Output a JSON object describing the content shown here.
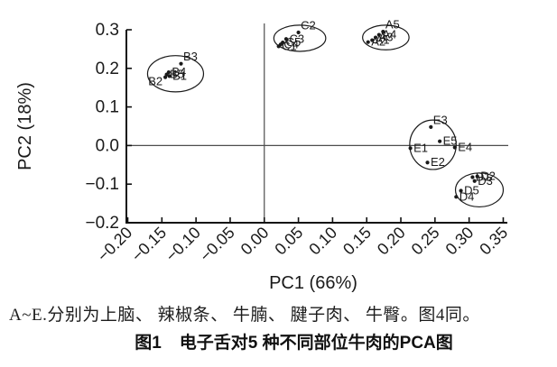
{
  "colors": {
    "ink": "#1a1a1a",
    "axis": "#111111",
    "zero_line": "#4d4d4d",
    "background": "#ffffff"
  },
  "chart_data": {
    "type": "scatter",
    "title": "",
    "xlabel": "PC1 (66%)",
    "ylabel": "PC2 (18%)",
    "xlim": [
      -0.202,
      0.356
    ],
    "ylim": [
      -0.2,
      0.3
    ],
    "grid": false,
    "zero_lines": true,
    "legend": "none",
    "x_ticks": [
      -0.2,
      -0.15,
      -0.1,
      -0.05,
      0.0,
      0.05,
      0.1,
      0.15,
      0.2,
      0.25,
      0.3,
      0.35
    ],
    "x_tick_labels": [
      "−0.20",
      "−0.15",
      "−0.10",
      "−0.05",
      "0.00",
      "0.05",
      "0.10",
      "0.15",
      "0.20",
      "0.25",
      "0.30",
      "0.35"
    ],
    "y_ticks": [
      0.3,
      0.2,
      0.1,
      0.0,
      -0.1,
      -0.2
    ],
    "y_tick_labels": [
      "0.3",
      "0.2",
      "0.1",
      "0.0",
      "−0.1",
      "−0.2"
    ],
    "series": [
      {
        "name": "A",
        "ellipse": {
          "cx": 0.178,
          "cy": 0.28,
          "rx": 0.034,
          "ry": 0.032
        },
        "points": [
          {
            "label": "A1",
            "x": 0.158,
            "y": 0.273,
            "lpos": "r"
          },
          {
            "label": "A2",
            "x": 0.152,
            "y": 0.268,
            "lpos": "r"
          },
          {
            "label": "A3",
            "x": 0.163,
            "y": 0.28,
            "lpos": "r"
          },
          {
            "label": "A4",
            "x": 0.168,
            "y": 0.287,
            "lpos": "r"
          },
          {
            "label": "A5",
            "x": 0.174,
            "y": 0.295,
            "lpos": "ra"
          }
        ]
      },
      {
        "name": "B",
        "ellipse": {
          "cx": -0.13,
          "cy": 0.186,
          "rx": 0.041,
          "ry": 0.047
        },
        "points": [
          {
            "label": "B1",
            "x": -0.139,
            "y": 0.18,
            "lpos": "r"
          },
          {
            "label": "B2",
            "x": -0.145,
            "y": 0.177,
            "lpos": "l"
          },
          {
            "label": "B3",
            "x": -0.122,
            "y": 0.212,
            "lpos": "ra"
          },
          {
            "label": "B4",
            "x": -0.14,
            "y": 0.19,
            "lpos": "r"
          },
          {
            "label": "B5",
            "x": -0.143,
            "y": 0.184,
            "lpos": "r"
          }
        ]
      },
      {
        "name": "C",
        "ellipse": {
          "cx": 0.052,
          "cy": 0.278,
          "rx": 0.038,
          "ry": 0.034
        },
        "points": [
          {
            "label": "C1",
            "x": 0.021,
            "y": 0.257,
            "lpos": "r"
          },
          {
            "label": "C2",
            "x": 0.05,
            "y": 0.293,
            "lpos": "ra"
          },
          {
            "label": "C3",
            "x": 0.032,
            "y": 0.276,
            "lpos": "r"
          },
          {
            "label": "C4",
            "x": 0.024,
            "y": 0.262,
            "lpos": "r"
          },
          {
            "label": "C5",
            "x": 0.027,
            "y": 0.267,
            "lpos": "r"
          }
        ]
      },
      {
        "name": "D",
        "ellipse": {
          "cx": 0.315,
          "cy": -0.115,
          "rx": 0.035,
          "ry": 0.044
        },
        "points": [
          {
            "label": "D1",
            "x": 0.305,
            "y": -0.082,
            "lpos": "r"
          },
          {
            "label": "D2",
            "x": 0.312,
            "y": -0.08,
            "lpos": "r"
          },
          {
            "label": "D3",
            "x": 0.308,
            "y": -0.092,
            "lpos": "r"
          },
          {
            "label": "D4",
            "x": 0.281,
            "y": -0.133,
            "lpos": "r"
          },
          {
            "label": "D5",
            "x": 0.288,
            "y": -0.117,
            "lpos": "r"
          }
        ]
      },
      {
        "name": "E",
        "ellipse": {
          "cx": 0.247,
          "cy": 0.002,
          "rx": 0.034,
          "ry": 0.064
        },
        "points": [
          {
            "label": "E1",
            "x": 0.214,
            "y": -0.007,
            "lpos": "r"
          },
          {
            "label": "E2",
            "x": 0.239,
            "y": -0.044,
            "lpos": "r"
          },
          {
            "label": "E3",
            "x": 0.244,
            "y": 0.048,
            "lpos": "ra"
          },
          {
            "label": "E4",
            "x": 0.279,
            "y": -0.005,
            "lpos": "r"
          },
          {
            "label": "E5",
            "x": 0.257,
            "y": 0.011,
            "lpos": "r"
          }
        ]
      }
    ]
  },
  "caption": {
    "note": "A~E.分别为上脑、 辣椒条、 牛腩、 腱子肉、 牛臀。图4同。",
    "figure_label": "图1",
    "figure_title": "电子舌对5 种不同部位牛肉的PCA图"
  }
}
